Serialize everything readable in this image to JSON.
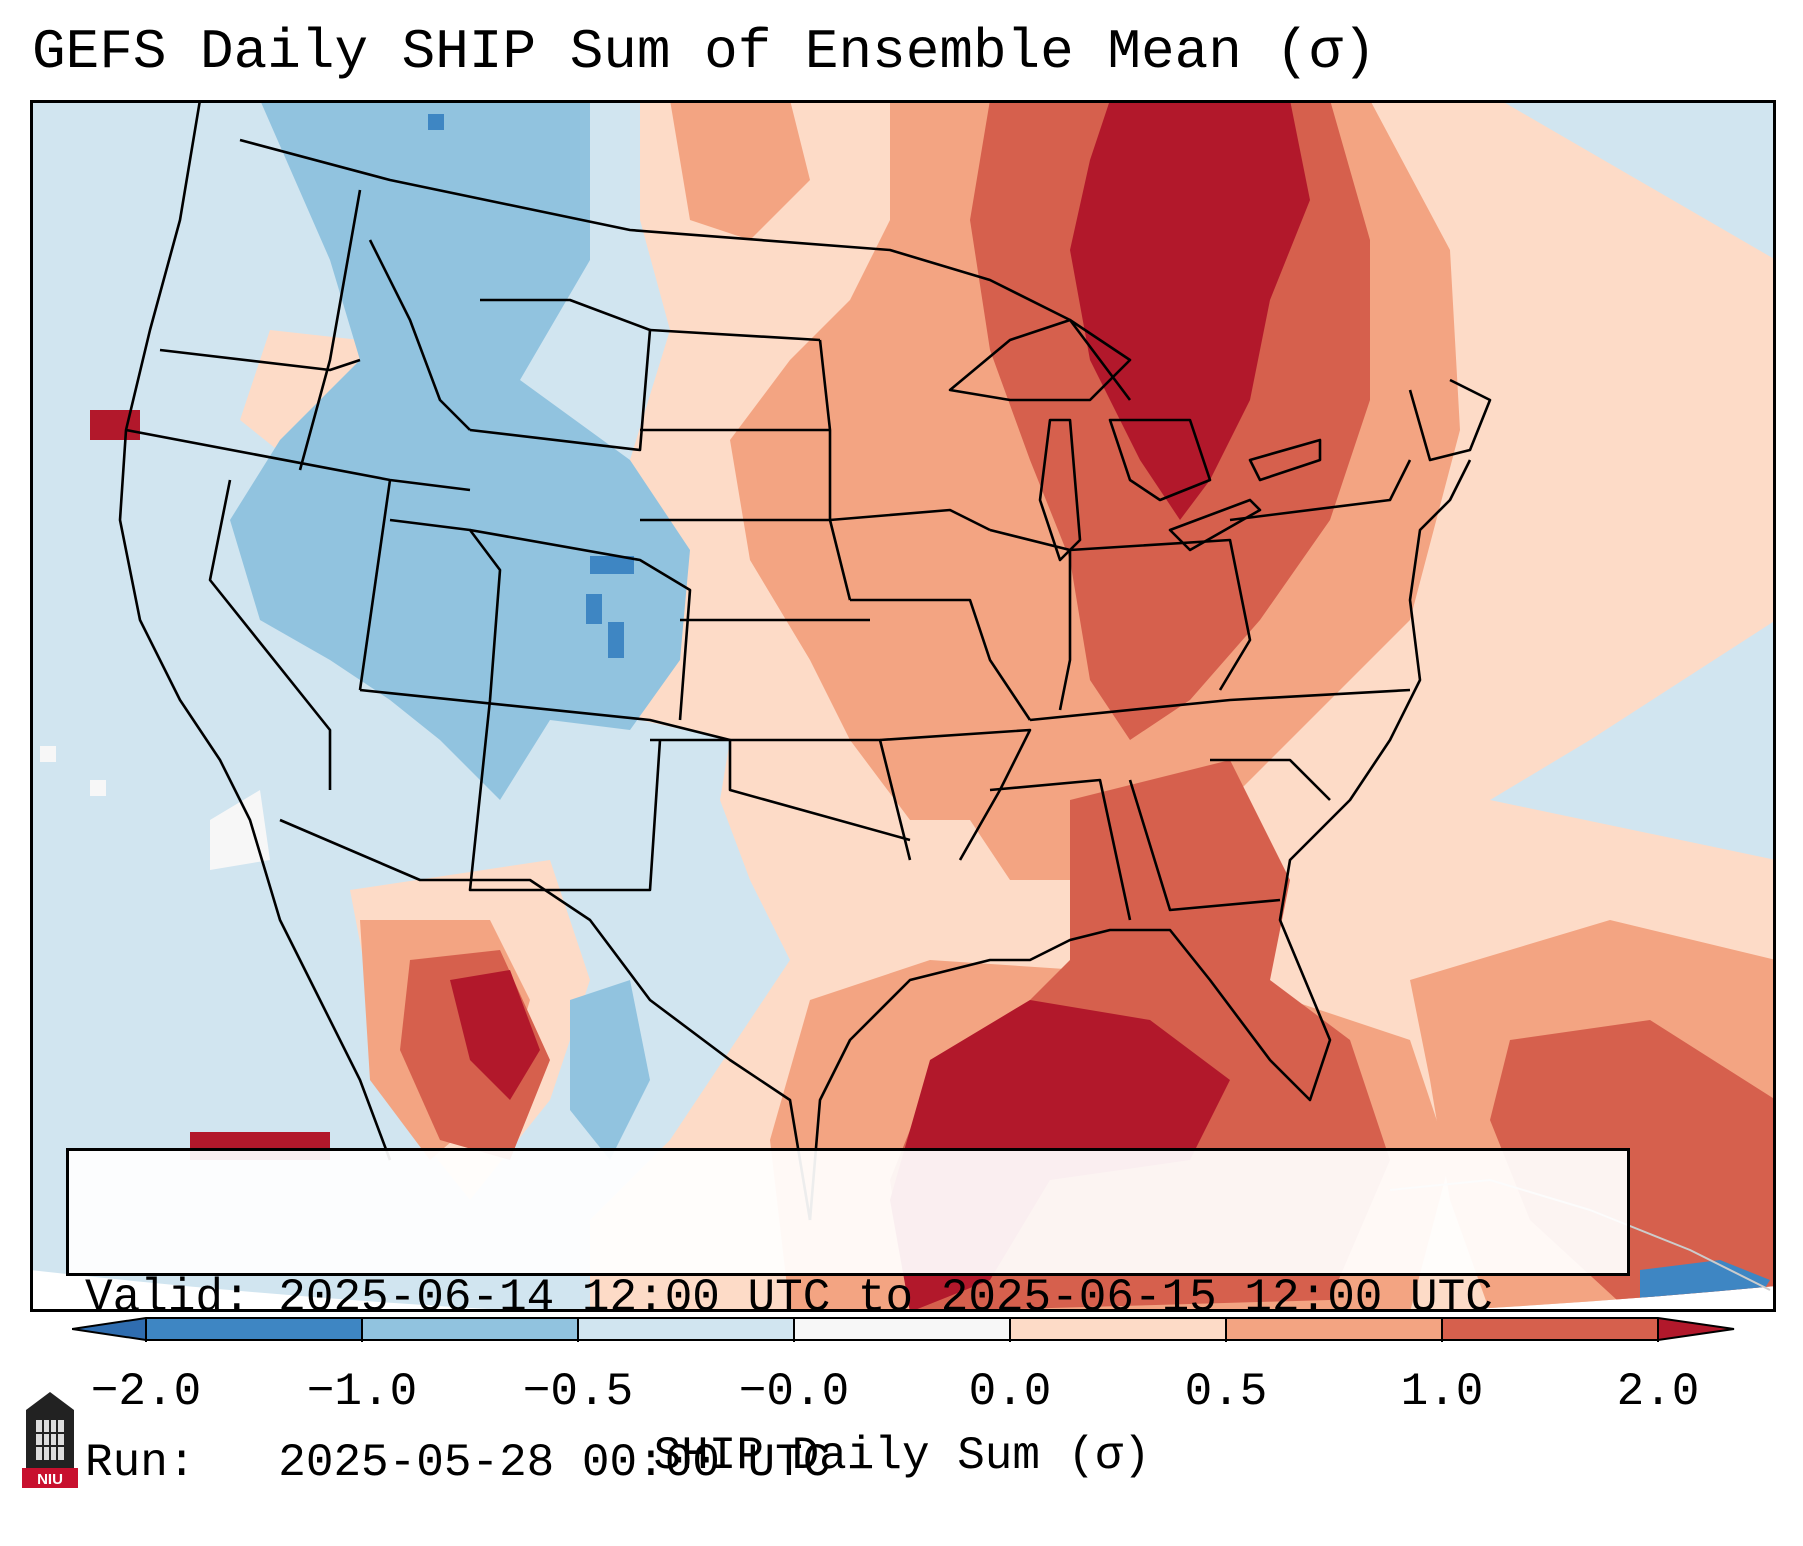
{
  "title": "GEFS Daily SHIP Sum of Ensemble Mean (σ)",
  "info": {
    "valid_line": "Valid: 2025-06-14 12:00 UTC to 2025-06-15 12:00 UTC",
    "run_line": "Run:   2025-05-28 00:00 UTC"
  },
  "colorbar": {
    "label": "SHIP Daily Sum (σ)",
    "ticks": [
      "−2.0",
      "−1.0",
      "−0.5",
      "−0.0",
      "0.0",
      "0.5",
      "1.0",
      "2.0"
    ],
    "extend": "both",
    "colors": {
      "under": "#2f6db0",
      "bins": [
        "#3e86c3",
        "#91c3df",
        "#d1e5f0",
        "#f7f7f7",
        "#fddbc7",
        "#f3a482",
        "#d6604d",
        "#b2182b"
      ],
      "over": "#b2182b"
    }
  },
  "map": {
    "projection": "Lambert Conformal",
    "region": "Contiguous United States",
    "colors": {
      "strong_negative": "#3e86c3",
      "moderate_negative": "#91c3df",
      "weak_negative": "#d1e5f0",
      "near_zero": "#f7f7f7",
      "weak_positive": "#fddbc7",
      "moderate_positive": "#f3a482",
      "high_positive": "#d6604d",
      "extreme_positive": "#b2182b",
      "border": "#000000"
    }
  },
  "logo": {
    "text": "NIU"
  }
}
